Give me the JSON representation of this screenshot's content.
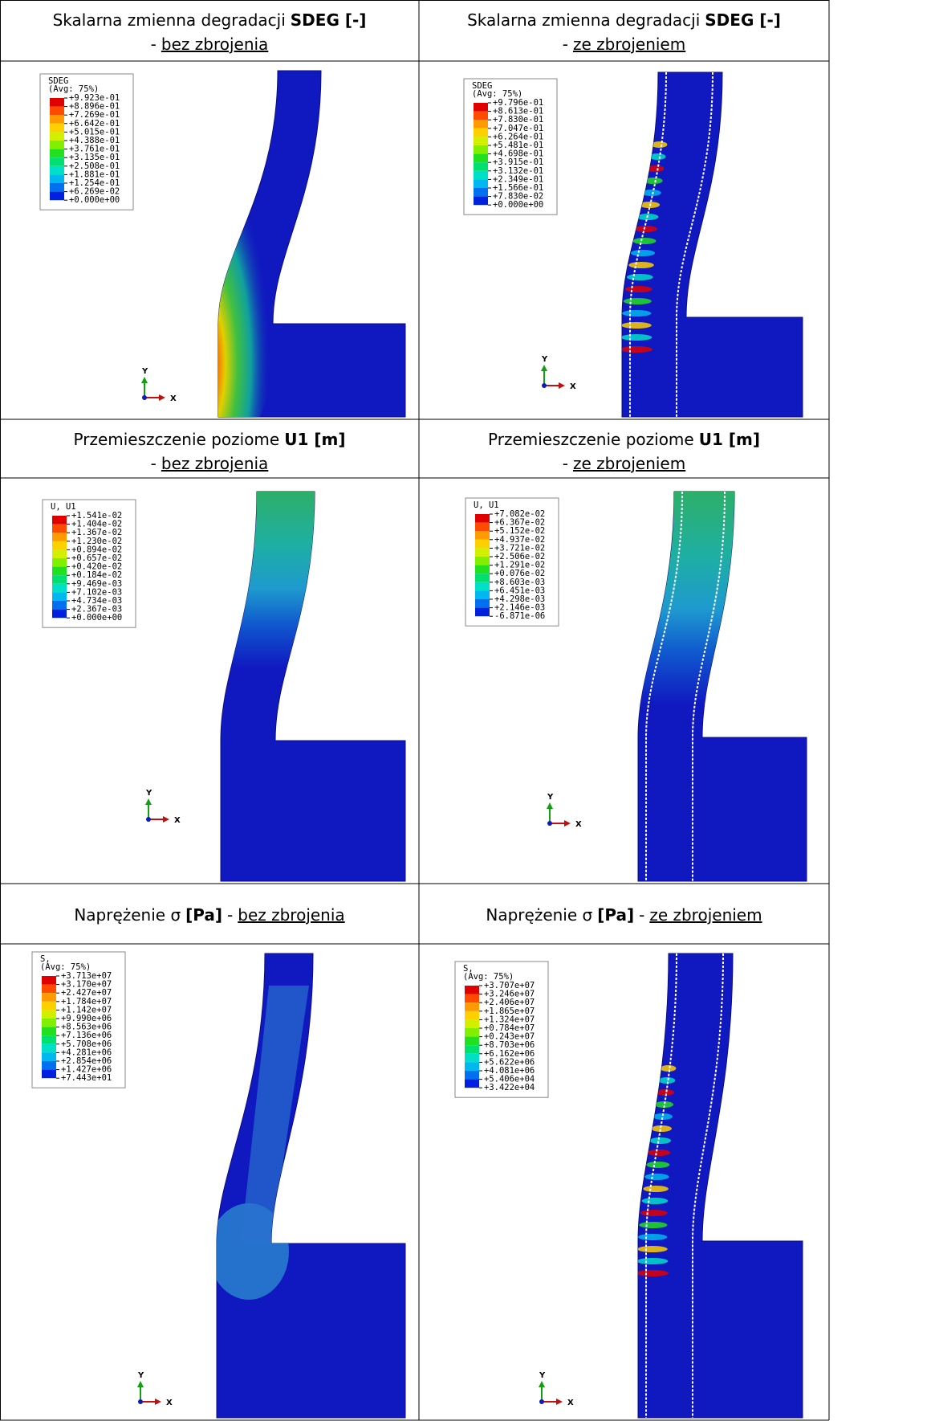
{
  "rows": [
    {
      "headers": [
        {
          "lead": "Skalarna zmienna degradacji",
          "bold": "SDEG [-]",
          "dash": "-",
          "variant": "bez zbrojenia"
        },
        {
          "lead": "Skalarna zmienna degradacji",
          "bold": "SDEG [-]",
          "dash": "-",
          "variant": "ze zbrojeniem"
        }
      ],
      "panels": [
        {
          "legend": {
            "title": "SDEG",
            "subtitle": "(Avg: 75%)",
            "values": [
              "+9.923e-01",
              "+8.896e-01",
              "+7.269e-01",
              "+6.642e-01",
              "+5.015e-01",
              "+4.388e-01",
              "+3.761e-01",
              "+3.135e-01",
              "+2.508e-01",
              "+1.881e-01",
              "+1.254e-01",
              "+6.269e-02",
              "+0.000e+00"
            ]
          },
          "axes": {
            "y": "Y",
            "x": "X"
          }
        },
        {
          "legend": {
            "title": "SDEG",
            "subtitle": "(Avg: 75%)",
            "values": [
              "+9.796e-01",
              "+8.613e-01",
              "+7.830e-01",
              "+7.047e-01",
              "+6.264e-01",
              "+5.481e-01",
              "+4.698e-01",
              "+3.915e-01",
              "+3.132e-01",
              "+2.349e-01",
              "+1.566e-01",
              "+7.830e-02",
              "+0.000e+00"
            ]
          },
          "axes": {
            "y": "Y",
            "x": "X"
          }
        }
      ]
    },
    {
      "headers": [
        {
          "lead": "Przemieszczenie poziome",
          "bold": "U1 [m]",
          "dash": "-",
          "variant": "bez zbrojenia"
        },
        {
          "lead": "Przemieszczenie poziome",
          "bold": "U1 [m]",
          "dash": "-",
          "variant": "ze zbrojeniem"
        }
      ],
      "panels": [
        {
          "legend": {
            "title": "U, U1",
            "values": [
              "+1.541e-02",
              "+1.404e-02",
              "+1.367e-02",
              "+1.230e-02",
              "+0.894e-02",
              "+0.657e-02",
              "+0.420e-02",
              "+0.184e-02",
              "+9.469e-03",
              "+7.102e-03",
              "+4.734e-03",
              "+2.367e-03",
              "+0.000e+00"
            ]
          },
          "axes": {
            "y": "Y",
            "x": "X"
          }
        },
        {
          "legend": {
            "title": "U, U1",
            "values": [
              "+7.082e-02",
              "+6.367e-02",
              "+5.152e-02",
              "+4.937e-02",
              "+3.721e-02",
              "+2.506e-02",
              "+1.291e-02",
              "+0.076e-02",
              "+8.603e-03",
              "+6.451e-03",
              "+4.298e-03",
              "+2.146e-03",
              "-6.871e-06"
            ]
          },
          "axes": {
            "y": "Y",
            "x": "X"
          }
        }
      ]
    },
    {
      "headers": [
        {
          "lead": "Naprężenie σ",
          "bold": "[Pa]",
          "dash": "-",
          "variant": "bez zbrojenia"
        },
        {
          "lead": "Naprężenie σ",
          "bold": "[Pa]",
          "dash": "-",
          "variant": "ze zbrojeniem"
        }
      ],
      "panels": [
        {
          "legend": {
            "title": "S,",
            "subtitle": "(Avg: 75%)",
            "values": [
              "+3.713e+07",
              "+3.170e+07",
              "+2.427e+07",
              "+1.784e+07",
              "+1.142e+07",
              "+9.990e+06",
              "+8.563e+06",
              "+7.136e+06",
              "+5.708e+06",
              "+4.281e+06",
              "+2.854e+06",
              "+1.427e+06",
              "+7.443e+01"
            ]
          },
          "axes": {
            "y": "Y",
            "x": "X"
          }
        },
        {
          "legend": {
            "title": "S,",
            "subtitle": "(Avg: 75%)",
            "values": [
              "+3.707e+07",
              "+3.246e+07",
              "+2.406e+07",
              "+1.865e+07",
              "+1.324e+07",
              "+0.784e+07",
              "+0.243e+07",
              "+8.703e+06",
              "+6.162e+06",
              "+5.622e+06",
              "+4.081e+06",
              "+5.406e+04",
              "+3.422e+04"
            ]
          },
          "axes": {
            "y": "Y",
            "x": "X"
          }
        }
      ]
    }
  ]
}
